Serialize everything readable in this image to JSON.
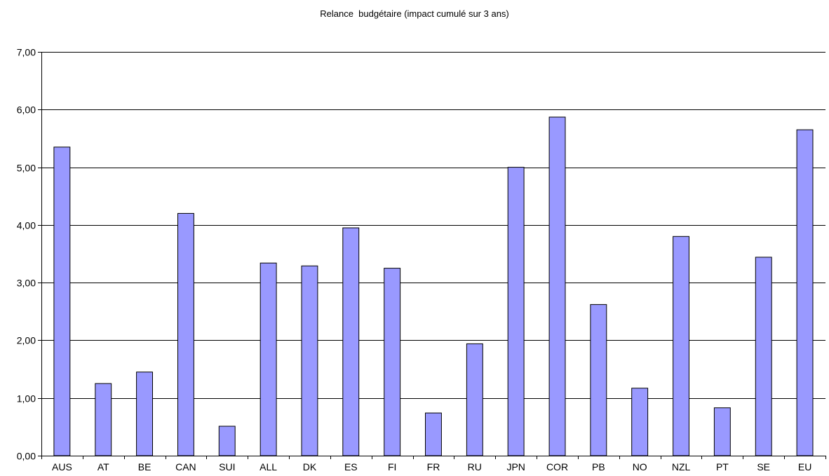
{
  "chart_data": {
    "type": "bar",
    "title": "Relance  budgétaire (impact cumulé sur 3 ans)",
    "xlabel": "",
    "ylabel": "",
    "ylim": [
      0,
      7
    ],
    "yticks": [
      "0,00",
      "1,00",
      "2,00",
      "3,00",
      "4,00",
      "5,00",
      "6,00",
      "7,00"
    ],
    "grid": true,
    "legend": "none",
    "categories": [
      "AUS",
      "AT",
      "BE",
      "CAN",
      "SUI",
      "ALL",
      "DK",
      "ES",
      "FI",
      "FR",
      "RU",
      "JPN",
      "COR",
      "PB",
      "NO",
      "NZL",
      "PT",
      "SE",
      "EU"
    ],
    "values": [
      5.35,
      1.25,
      1.45,
      4.2,
      0.51,
      3.34,
      3.29,
      3.95,
      3.25,
      0.74,
      1.94,
      5.0,
      5.87,
      2.62,
      1.17,
      3.8,
      0.83,
      3.44,
      5.65
    ],
    "colors": {
      "bar_fill": "#9999ff",
      "bar_stroke": "#000000",
      "grid": "#000000",
      "axis": "#000000"
    }
  }
}
